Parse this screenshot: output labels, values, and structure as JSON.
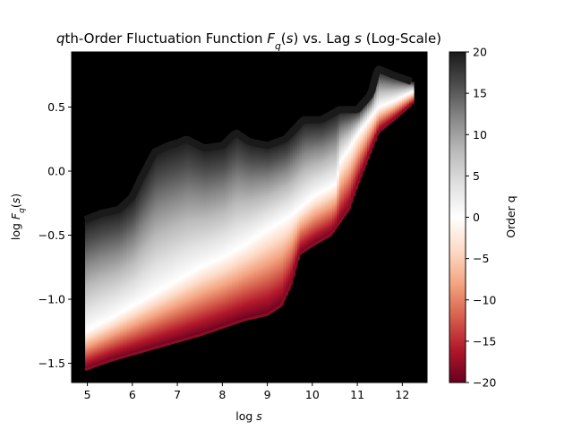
{
  "chart_data": {
    "type": "heatmap",
    "title_parts": [
      {
        "text": "q",
        "style": "italic"
      },
      {
        "text": "th-Order Fluctuation Function "
      },
      {
        "text": "F",
        "style": "italic"
      },
      {
        "text": "q",
        "style": "italic-sub"
      },
      {
        "text": "("
      },
      {
        "text": "s",
        "style": "italic"
      },
      {
        "text": ") vs. Lag "
      },
      {
        "text": "s",
        "style": "italic"
      },
      {
        "text": " (Log-Scale)"
      }
    ],
    "xlabel_parts": [
      {
        "text": "log "
      },
      {
        "text": "s",
        "style": "italic"
      }
    ],
    "ylabel_parts": [
      {
        "text": "log "
      },
      {
        "text": "F",
        "style": "italic"
      },
      {
        "text": "q",
        "style": "italic-sub"
      },
      {
        "text": "("
      },
      {
        "text": "s",
        "style": "italic"
      },
      {
        "text": ")"
      }
    ],
    "xlim": [
      4.65,
      12.55
    ],
    "ylim": [
      -1.65,
      0.93
    ],
    "xticks": [
      5,
      6,
      7,
      8,
      9,
      10,
      11,
      12
    ],
    "xtick_labels": [
      "5",
      "6",
      "7",
      "8",
      "9",
      "10",
      "11",
      "12"
    ],
    "yticks": [
      0.5,
      0.0,
      -0.5,
      -1.0,
      -1.5
    ],
    "ytick_labels": [
      "0.5",
      "0.0",
      "−0.5",
      "−1.0",
      "−1.5"
    ],
    "background": "#000000",
    "colormap": "RdGy",
    "colormap_stops": [
      "#67001f",
      "#b2182b",
      "#d6604d",
      "#f4a582",
      "#fddbc7",
      "#ffffff",
      "#e0e0e0",
      "#bababa",
      "#878787",
      "#4d4d4d",
      "#1a1a1a"
    ],
    "q_range": [
      -20,
      20
    ],
    "colorbar": {
      "label": "Order q",
      "ticks": [
        20,
        15,
        10,
        5,
        0,
        -5,
        -10,
        -15,
        -20
      ],
      "tick_labels": [
        "20",
        "15",
        "10",
        "5",
        "0",
        "−5",
        "−10",
        "−15",
        "−20"
      ]
    },
    "series": [
      {
        "name": "q = 20",
        "x": [
          4.95,
          5.3,
          5.7,
          6.0,
          6.2,
          6.5,
          6.8,
          7.0,
          7.2,
          7.6,
          8.0,
          8.3,
          8.6,
          9.0,
          9.4,
          9.8,
          10.2,
          10.6,
          11.0,
          11.3,
          11.45,
          11.8,
          12.2
        ],
        "values": [
          -0.38,
          -0.33,
          -0.3,
          -0.2,
          -0.05,
          0.15,
          0.2,
          0.22,
          0.25,
          0.18,
          0.2,
          0.3,
          0.23,
          0.2,
          0.25,
          0.4,
          0.4,
          0.48,
          0.48,
          0.6,
          0.8,
          0.75,
          0.7
        ]
      },
      {
        "name": "q = 0",
        "x": [
          4.95,
          5.5,
          6.0,
          6.5,
          7.0,
          7.5,
          8.0,
          8.5,
          9.0,
          9.5,
          10.0,
          10.5,
          10.6,
          10.8,
          11.0,
          11.45,
          11.8,
          12.2
        ],
        "values": [
          -1.25,
          -1.15,
          -1.05,
          -0.95,
          -0.85,
          -0.75,
          -0.67,
          -0.57,
          -0.45,
          -0.35,
          -0.2,
          -0.1,
          0.08,
          0.18,
          0.3,
          0.5,
          0.55,
          0.62
        ]
      },
      {
        "name": "q = -20",
        "x": [
          4.95,
          5.5,
          6.0,
          6.5,
          7.0,
          7.5,
          8.0,
          8.5,
          9.0,
          9.3,
          9.5,
          9.7,
          10.0,
          10.4,
          10.6,
          10.8,
          11.0,
          11.45,
          11.8,
          12.2
        ],
        "values": [
          -1.55,
          -1.48,
          -1.43,
          -1.38,
          -1.33,
          -1.28,
          -1.22,
          -1.16,
          -1.12,
          -1.05,
          -0.9,
          -0.65,
          -0.58,
          -0.5,
          -0.4,
          -0.3,
          -0.1,
          0.3,
          0.4,
          0.52
        ]
      }
    ]
  }
}
